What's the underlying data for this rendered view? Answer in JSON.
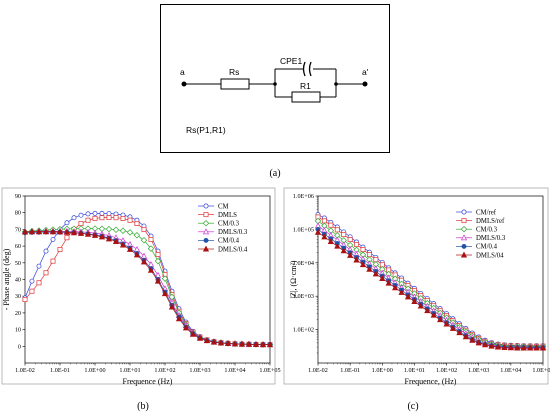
{
  "captions": {
    "a": "(a)",
    "b": "(b)",
    "c": "(c)"
  },
  "circuit": {
    "node_a": "a",
    "node_a_prime": "a'",
    "rs": "Rs",
    "cpe": "CPE1",
    "r1": "R1",
    "formula": "Rs(P1,R1)"
  },
  "chart_data": [
    {
      "type": "line",
      "xscale": "log",
      "xlabel": "Frequence (Hz)",
      "ylabel": "- Phase angle (deg)",
      "xlim": [
        0.01,
        100000
      ],
      "ylim": [
        -10,
        90
      ],
      "xticks": [
        "1.0E-02",
        "1.0E-01",
        "1.0E+00",
        "1.0E+01",
        "1.0E+02",
        "1.0E+03",
        "1.0E+04",
        "1.0E+05"
      ],
      "yticks": [
        "0",
        "10",
        "20",
        "30",
        "40",
        "50",
        "60",
        "70",
        "80",
        "90"
      ],
      "legend_position": "top-right",
      "x": [
        0.01,
        0.0158,
        0.0251,
        0.0398,
        0.0631,
        0.1,
        0.158,
        0.251,
        0.398,
        0.631,
        1,
        1.58,
        2.51,
        3.98,
        6.31,
        10,
        15.8,
        25.1,
        39.8,
        63.1,
        100,
        158,
        251,
        398,
        631,
        1000,
        1580,
        2510,
        3980,
        6310,
        10000,
        15800,
        25100,
        39800,
        63100,
        100000
      ],
      "series": [
        {
          "name": "CM",
          "color": "#3344dd",
          "marker": "circle",
          "values": [
            29,
            39,
            48,
            57,
            64,
            70,
            74,
            77,
            78.5,
            79.3,
            79.6,
            79.6,
            79.5,
            79.2,
            78.6,
            77.5,
            75.5,
            72,
            66,
            57,
            45,
            33,
            22.5,
            14.5,
            9,
            5.8,
            3.9,
            2.8,
            2.2,
            1.8,
            1.5,
            1.3,
            1.2,
            1.1,
            1.0,
            1.0
          ]
        },
        {
          "name": "DMLS",
          "color": "#dd3333",
          "marker": "square",
          "values": [
            28,
            33,
            38,
            44,
            51,
            58,
            65,
            70,
            73.5,
            75.5,
            76.6,
            77,
            77.1,
            77,
            76.5,
            75.5,
            73.5,
            70,
            64,
            55,
            43,
            31,
            21,
            13.5,
            8.5,
            5.5,
            3.8,
            2.8,
            2.2,
            1.8,
            1.5,
            1.3,
            1.2,
            1.1,
            1.0,
            1.0
          ]
        },
        {
          "name": "CM/0.3",
          "color": "#33aa33",
          "marker": "diamond",
          "values": [
            68.5,
            69,
            69.3,
            69.6,
            69.9,
            70.1,
            70.3,
            70.4,
            70.5,
            70.5,
            70.5,
            70.4,
            70.2,
            69.8,
            69.2,
            68.2,
            66.5,
            63.5,
            58.5,
            51,
            40.5,
            29.5,
            20,
            13,
            8,
            5.2,
            3.6,
            2.7,
            2.1,
            1.7,
            1.5,
            1.3,
            1.2,
            1.1,
            1.0,
            1.0
          ]
        },
        {
          "name": "DMLS/0.3",
          "color": "#cc33cc",
          "marker": "triangle-up",
          "values": [
            68.5,
            68.7,
            68.8,
            68.9,
            68.9,
            68.9,
            68.8,
            68.7,
            68.5,
            68.2,
            67.8,
            67.2,
            66.3,
            65,
            63.3,
            61,
            58,
            54,
            49,
            42.5,
            34.5,
            26,
            18.5,
            12.5,
            8,
            5.2,
            3.6,
            2.7,
            2.1,
            1.7,
            1.5,
            1.3,
            1.2,
            1.1,
            1.0,
            1.0
          ]
        },
        {
          "name": "CM/0.4",
          "color": "#2255aa",
          "marker": "circle-filled",
          "values": [
            68,
            68.2,
            68.3,
            68.4,
            68.4,
            68.3,
            68.2,
            68,
            67.7,
            67.3,
            66.7,
            65.9,
            64.8,
            63.3,
            61.3,
            58.8,
            55.5,
            51.5,
            46.5,
            40,
            32.5,
            24.5,
            17.5,
            11.5,
            7.5,
            5,
            3.5,
            2.6,
            2.0,
            1.7,
            1.4,
            1.3,
            1.2,
            1.1,
            1.0,
            1.0
          ]
        },
        {
          "name": "DMLS/0.4",
          "color": "#aa1111",
          "marker": "triangle-up-filled",
          "values": [
            68.5,
            68.6,
            68.6,
            68.6,
            68.6,
            68.5,
            68.3,
            68,
            67.6,
            67.1,
            66.4,
            65.5,
            64.3,
            62.7,
            60.6,
            58,
            54.7,
            50.5,
            45.5,
            39,
            31.5,
            23.5,
            16.5,
            11,
            7.2,
            4.8,
            3.4,
            2.5,
            2.0,
            1.7,
            1.4,
            1.3,
            1.2,
            1.1,
            1.0,
            1.0
          ]
        }
      ]
    },
    {
      "type": "line",
      "xscale": "log",
      "yscale": "log",
      "xlabel": "Frequence, (Hz)",
      "ylabel": "|Z|, (Ω·cm²)",
      "xlim": [
        0.01,
        100000
      ],
      "ylim": [
        10,
        1000000
      ],
      "xticks": [
        "1.0E-02",
        "1.0E-01",
        "1.0E+00",
        "1.0E+01",
        "1.0E+02",
        "1.0E+03",
        "1.0E+04",
        "1.0E+05"
      ],
      "yticks": [
        "1.0E+06",
        "1.0E+05",
        "1.0E+04",
        "1.0E+03",
        "1.0E+02"
      ],
      "legend_position": "top-right",
      "x": [
        0.01,
        0.0158,
        0.0251,
        0.0398,
        0.0631,
        0.1,
        0.158,
        0.251,
        0.398,
        0.631,
        1,
        1.58,
        2.51,
        3.98,
        6.31,
        10,
        15.8,
        25.1,
        39.8,
        63.1,
        100,
        158,
        251,
        398,
        631,
        1000,
        1580,
        2510,
        3980,
        6310,
        10000,
        15800,
        25100,
        39800,
        63100,
        100000
      ],
      "series": [
        {
          "name": "CM/ref",
          "color": "#3344dd",
          "marker": "circle",
          "values": [
            280000,
            220000,
            162000,
            118000,
            84000,
            60000,
            42000,
            29500,
            20700,
            14500,
            10200,
            7100,
            5000,
            3500,
            2450,
            1720,
            1210,
            850,
            600,
            425,
            300,
            212,
            150,
            108,
            79,
            60,
            48,
            41,
            37,
            35,
            34,
            33.5,
            33,
            33,
            33,
            33
          ]
        },
        {
          "name": "DMLS/ref",
          "color": "#dd3333",
          "marker": "square",
          "values": [
            235000,
            180000,
            134000,
            97000,
            70000,
            50000,
            35500,
            25000,
            17600,
            12400,
            8700,
            6100,
            4300,
            3000,
            2100,
            1480,
            1040,
            730,
            515,
            365,
            260,
            185,
            132,
            96,
            71,
            55,
            45,
            39,
            35.5,
            34,
            33,
            32.5,
            32,
            32,
            32,
            32
          ]
        },
        {
          "name": "CM/0.3",
          "color": "#33aa33",
          "marker": "diamond",
          "values": [
            178000,
            128000,
            92000,
            66000,
            47000,
            34000,
            24300,
            17400,
            12500,
            9000,
            6400,
            4600,
            3300,
            2350,
            1680,
            1200,
            860,
            615,
            440,
            315,
            226,
            163,
            118,
            87,
            65,
            51,
            42,
            37,
            34,
            32.5,
            31.5,
            31,
            31,
            31,
            31,
            31
          ]
        },
        {
          "name": "DMLS/0.3",
          "color": "#cc33cc",
          "marker": "triangle-up",
          "values": [
            128000,
            92000,
            66500,
            48000,
            34500,
            24800,
            17900,
            12900,
            9300,
            6700,
            4850,
            3500,
            2530,
            1830,
            1320,
            955,
            690,
            500,
            362,
            262,
            190,
            139,
            102,
            76,
            58,
            46,
            39,
            35,
            32.5,
            31,
            30.5,
            30,
            30,
            30,
            30,
            30
          ]
        },
        {
          "name": "CM/0.4",
          "color": "#2255aa",
          "marker": "circle-filled",
          "values": [
            100000,
            72500,
            52500,
            38000,
            27500,
            20000,
            14500,
            10500,
            7600,
            5500,
            4000,
            2900,
            2100,
            1520,
            1100,
            800,
            580,
            420,
            305,
            222,
            162,
            119,
            88,
            66,
            51,
            42,
            36,
            33,
            31,
            30,
            29.5,
            29,
            29,
            29,
            29,
            29
          ]
        },
        {
          "name": "DMLS/04",
          "color": "#aa1111",
          "marker": "triangle-up-filled",
          "values": [
            82000,
            59500,
            43200,
            31400,
            22800,
            16600,
            12100,
            8800,
            6400,
            4650,
            3380,
            2460,
            1790,
            1300,
            950,
            692,
            505,
            368,
            270,
            198,
            146,
            108,
            81,
            61,
            48,
            40,
            35,
            32,
            30,
            29,
            28.5,
            28,
            28,
            28,
            28,
            28
          ]
        }
      ]
    }
  ]
}
